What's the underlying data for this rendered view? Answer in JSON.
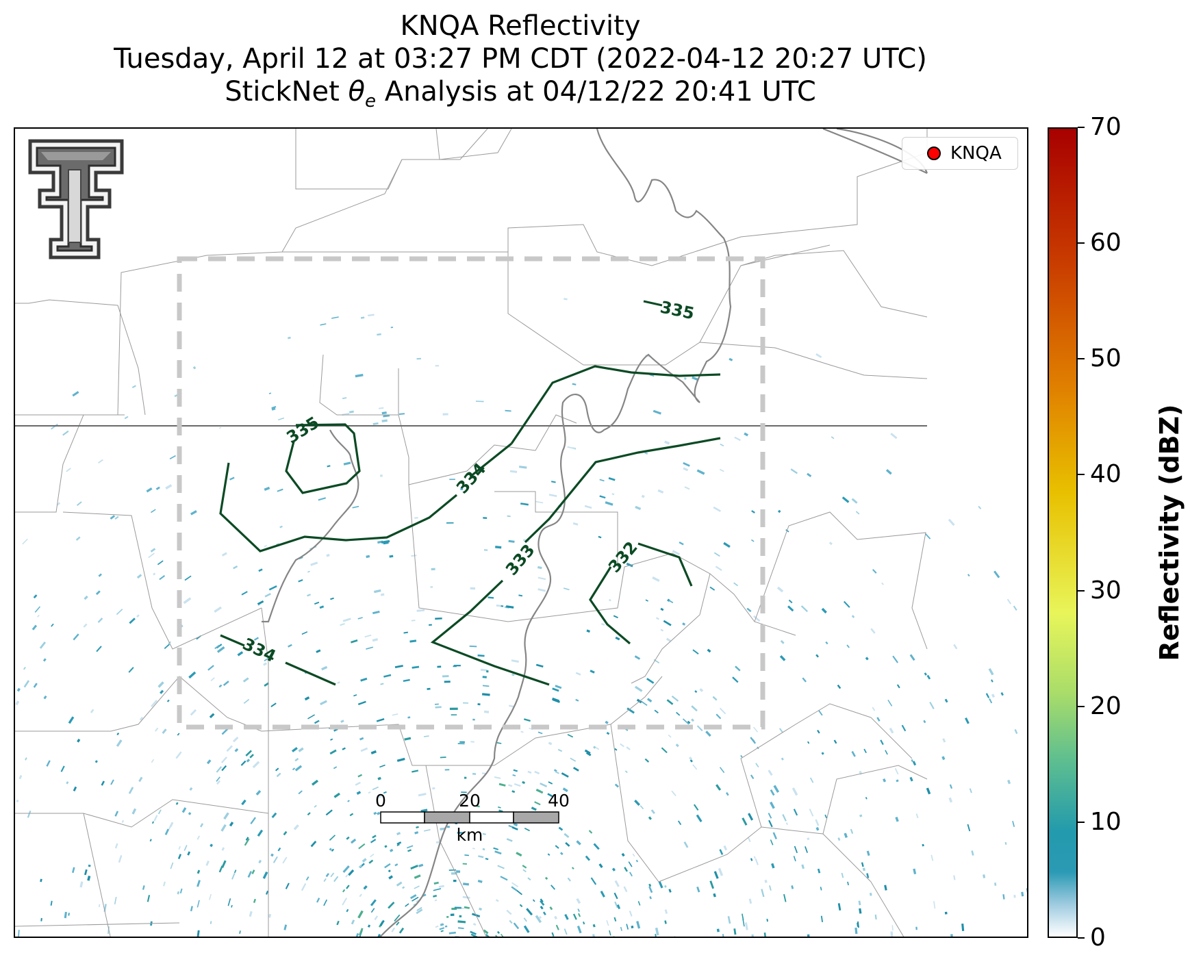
{
  "title": {
    "line1": "KNQA Reflectivity",
    "line2": "Tuesday, April 12 at 03:27 PM CDT (2022-04-12 20:27 UTC)",
    "line3_prefix": "StickNet ",
    "line3_symbol": "θ",
    "line3_subscript": "e",
    "line3_suffix": " Analysis at 04/12/22 20:41 UTC"
  },
  "legend": {
    "station_label": "KNQA",
    "marker_color": "#ff0000"
  },
  "colorbar": {
    "label": "Reflectivity (dBZ)",
    "min": 0,
    "max": 70,
    "ticks": [
      "0",
      "10",
      "20",
      "30",
      "40",
      "50",
      "60",
      "70"
    ]
  },
  "contours": {
    "color": "#0b4a24",
    "labels": [
      {
        "text": "335",
        "value": 335
      },
      {
        "text": "335",
        "value": 335
      },
      {
        "text": "334",
        "value": 334
      },
      {
        "text": "334",
        "value": 334
      },
      {
        "text": "333",
        "value": 333
      },
      {
        "text": "332",
        "value": 332
      }
    ]
  },
  "scale_bar": {
    "ticks": [
      "0",
      "20",
      "40"
    ],
    "unit": "km"
  },
  "logo": {
    "icon": "texas-tech-double-t-logo"
  },
  "colors": {
    "dashed_box": "#c8c8c8",
    "river": "#808080",
    "county_lines": "#9a9a9a"
  }
}
